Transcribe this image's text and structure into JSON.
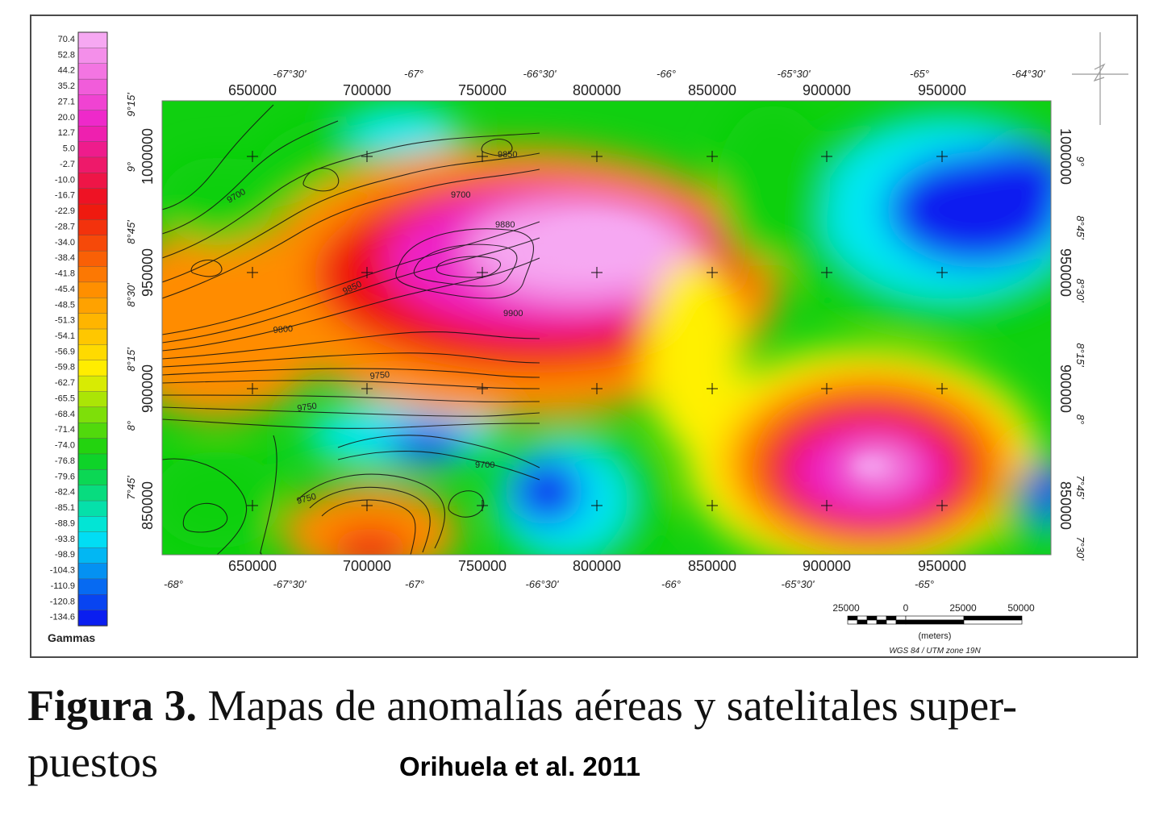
{
  "colors": {
    "pink_pale": "#f6a8f2",
    "magenta": "#ee22c8",
    "red": "#ee1010",
    "orange": "#ff8c00",
    "yellow": "#fff000",
    "green": "#10d010",
    "cyan": "#00e8f4",
    "blue": "#0a1ef0"
  },
  "legend": {
    "unit": "Gammas",
    "values": [
      "70.4",
      "52.8",
      "44.2",
      "35.2",
      "27.1",
      "20.0",
      "12.7",
      "5.0",
      "-2.7",
      "-10.0",
      "-16.7",
      "-22.9",
      "-28.7",
      "-34.0",
      "-38.4",
      "-41.8",
      "-45.4",
      "-48.5",
      "-51.3",
      "-54.1",
      "-56.9",
      "-59.8",
      "-62.7",
      "-65.5",
      "-68.4",
      "-71.4",
      "-74.0",
      "-76.8",
      "-79.6",
      "-82.4",
      "-85.1",
      "-88.9",
      "-93.8",
      "-98.9",
      "-104.3",
      "-110.9",
      "-120.8",
      "-134.6"
    ]
  },
  "map": {
    "x_ticks_utm": [
      "650000",
      "700000",
      "750000",
      "800000",
      "850000",
      "900000",
      "950000"
    ],
    "y_ticks_utm": [
      "1000000",
      "950000",
      "900000",
      "850000"
    ],
    "lon_top": [
      "-67°30'",
      "-67°",
      "-66°30'",
      "-66°",
      "-65°30'",
      "-65°",
      "-64°30'"
    ],
    "lon_bottom": [
      "-68°",
      "-67°30'",
      "-67°",
      "-66°30'",
      "-66°",
      "-65°30'",
      "-65°"
    ],
    "lat_left": [
      "9°15'",
      "9°",
      "8°45'",
      "8°30'",
      "8°15'",
      "8°",
      "7°45'"
    ],
    "lat_right": [
      "9°",
      "8°45'",
      "8°30'",
      "8°15'",
      "8°",
      "7°45'",
      "7°30'"
    ],
    "contour_labels": [
      "9850",
      "9700",
      "9700",
      "9880",
      "9850",
      "9900",
      "9800",
      "9750",
      "9750",
      "9700",
      "9750"
    ]
  },
  "scale_bar": {
    "ticks": [
      "25000",
      "0",
      "25000",
      "50000"
    ],
    "unit": "(meters)",
    "projection": "WGS 84 / UTM zone 19N"
  },
  "caption": {
    "label": "Figura 3.",
    "text": "Mapas de anomalías aéreas y satelitales super-",
    "text_line2": "puestos"
  },
  "credit": "Orihuela et al. 2011"
}
